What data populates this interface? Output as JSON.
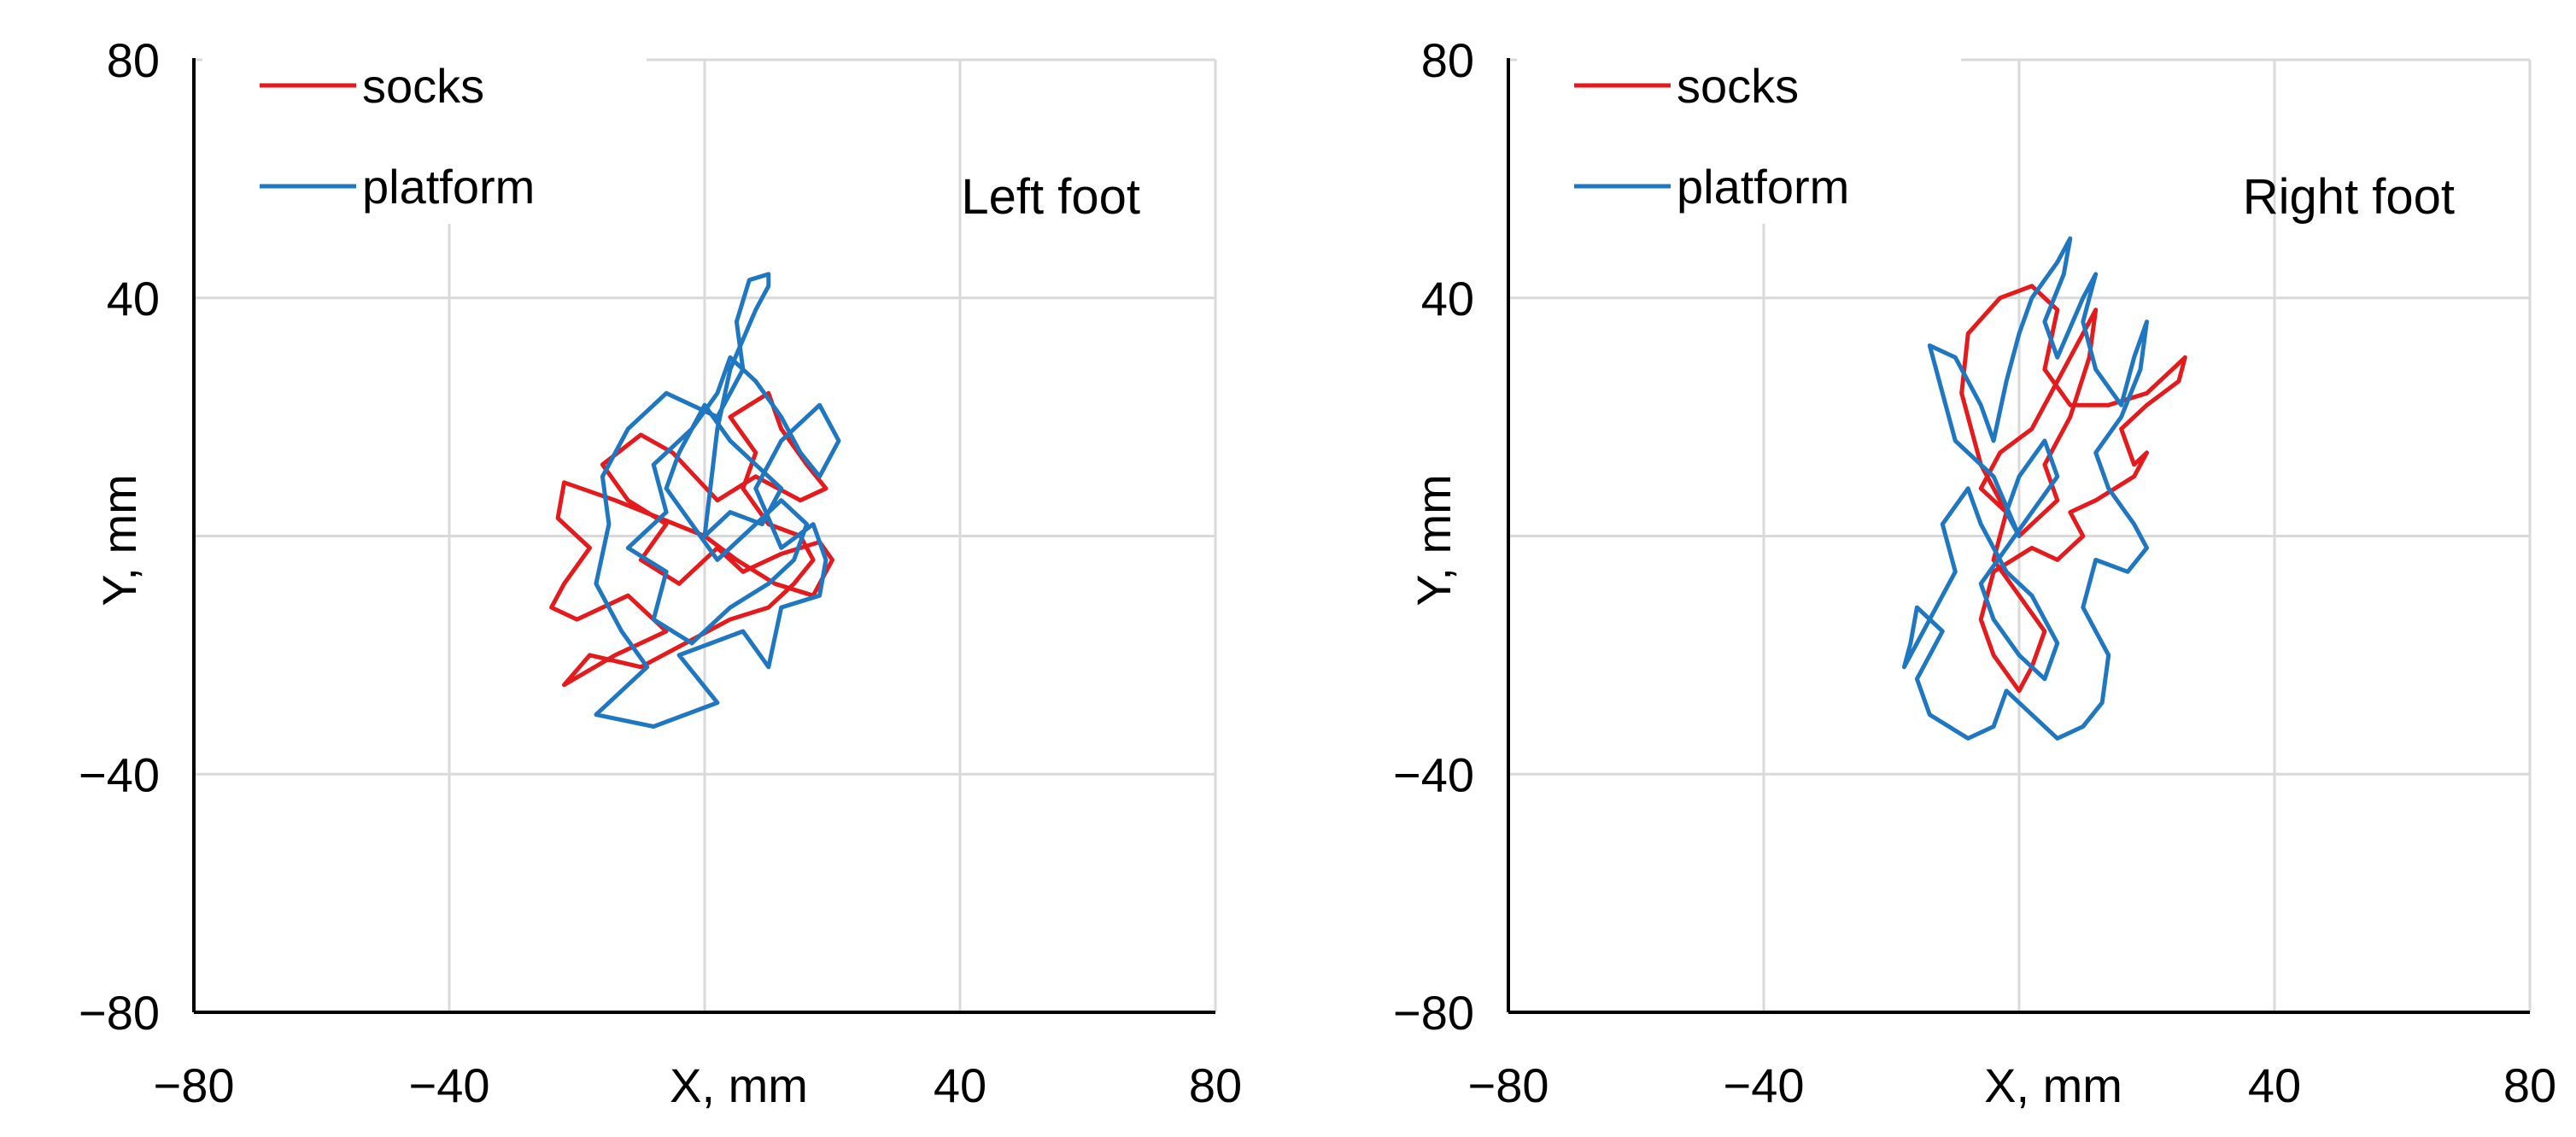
{
  "chart_data": [
    {
      "type": "line",
      "annotation": "Left foot",
      "xlabel": "X, mm",
      "ylabel": "Y, mm",
      "xlim": [
        -80,
        80
      ],
      "ylim": [
        -80,
        80
      ],
      "x_ticks": [
        "−80",
        "−40",
        "X, mm",
        "40",
        "80"
      ],
      "y_ticks": [
        "80",
        "40",
        "",
        "−40",
        "−80"
      ],
      "grid": true,
      "legend_position": "top-left",
      "series": [
        {
          "name": "socks",
          "color": "#e41a1c",
          "points": [
            [
              0,
              0
            ],
            [
              -14,
              6
            ],
            [
              -22,
              9
            ],
            [
              -23,
              3
            ],
            [
              -18,
              -2
            ],
            [
              -22,
              -8
            ],
            [
              -24,
              -12
            ],
            [
              -20,
              -14
            ],
            [
              -12,
              -10
            ],
            [
              -6,
              -16
            ],
            [
              -14,
              -20
            ],
            [
              -22,
              -25
            ],
            [
              -18,
              -20
            ],
            [
              -10,
              -22
            ],
            [
              -3,
              -18
            ],
            [
              4,
              -14
            ],
            [
              10,
              -12
            ],
            [
              14,
              -8
            ],
            [
              17,
              -4
            ],
            [
              15,
              0
            ],
            [
              10,
              2
            ],
            [
              6,
              8
            ],
            [
              8,
              14
            ],
            [
              4,
              20
            ],
            [
              10,
              24
            ],
            [
              12,
              18
            ],
            [
              16,
              12
            ],
            [
              19,
              8
            ],
            [
              15,
              6
            ],
            [
              8,
              10
            ],
            [
              2,
              6
            ],
            [
              -5,
              14
            ],
            [
              -10,
              17
            ],
            [
              -16,
              12
            ],
            [
              -12,
              6
            ],
            [
              -6,
              2
            ],
            [
              -10,
              -4
            ],
            [
              -4,
              -8
            ],
            [
              2,
              -2
            ],
            [
              6,
              -6
            ],
            [
              12,
              -3
            ],
            [
              18,
              -1
            ],
            [
              20,
              -4
            ],
            [
              17,
              -10
            ],
            [
              11,
              -8
            ],
            [
              5,
              -4
            ],
            [
              0,
              0
            ]
          ]
        },
        {
          "name": "platform",
          "color": "#1f77c2",
          "points": [
            [
              0,
              0
            ],
            [
              2,
              18
            ],
            [
              4,
              28
            ],
            [
              8,
              38
            ],
            [
              10,
              42
            ],
            [
              10,
              44
            ],
            [
              7,
              43
            ],
            [
              5,
              36
            ],
            [
              6,
              28
            ],
            [
              2,
              20
            ],
            [
              -6,
              24
            ],
            [
              -12,
              18
            ],
            [
              -16,
              10
            ],
            [
              -15,
              2
            ],
            [
              -17,
              -8
            ],
            [
              -13,
              -16
            ],
            [
              -9,
              -22
            ],
            [
              -15,
              -28
            ],
            [
              -17,
              -30
            ],
            [
              -8,
              -32
            ],
            [
              2,
              -28
            ],
            [
              -4,
              -20
            ],
            [
              6,
              -16
            ],
            [
              10,
              -22
            ],
            [
              12,
              -12
            ],
            [
              18,
              -10
            ],
            [
              19,
              -4
            ],
            [
              17,
              2
            ],
            [
              12,
              -2
            ],
            [
              8,
              8
            ],
            [
              12,
              16
            ],
            [
              18,
              22
            ],
            [
              21,
              16
            ],
            [
              18,
              10
            ],
            [
              15,
              14
            ],
            [
              12,
              20
            ],
            [
              8,
              26
            ],
            [
              4,
              30
            ],
            [
              2,
              24
            ],
            [
              -2,
              18
            ],
            [
              -8,
              12
            ],
            [
              -6,
              4
            ],
            [
              -12,
              -2
            ],
            [
              -6,
              -6
            ],
            [
              -8,
              -14
            ],
            [
              -2,
              -18
            ],
            [
              4,
              -12
            ],
            [
              10,
              -8
            ],
            [
              14,
              -4
            ],
            [
              16,
              2
            ],
            [
              12,
              6
            ],
            [
              6,
              0
            ],
            [
              2,
              -4
            ],
            [
              -2,
              2
            ],
            [
              -6,
              8
            ],
            [
              -4,
              14
            ],
            [
              0,
              22
            ],
            [
              4,
              16
            ],
            [
              8,
              12
            ],
            [
              12,
              8
            ],
            [
              9,
              2
            ],
            [
              4,
              4
            ],
            [
              0,
              0
            ]
          ]
        }
      ]
    },
    {
      "type": "line",
      "annotation": "Right foot",
      "xlabel": "X, mm",
      "ylabel": "Y, mm",
      "xlim": [
        -80,
        80
      ],
      "ylim": [
        -80,
        80
      ],
      "x_ticks": [
        "−80",
        "−40",
        "X, mm",
        "40",
        "80"
      ],
      "y_ticks": [
        "80",
        "40",
        "",
        "−40",
        "−80"
      ],
      "grid": true,
      "legend_position": "top-left",
      "series": [
        {
          "name": "socks",
          "color": "#e41a1c",
          "points": [
            [
              0,
              0
            ],
            [
              -6,
              12
            ],
            [
              -9,
              24
            ],
            [
              -8,
              34
            ],
            [
              -3,
              40
            ],
            [
              2,
              42
            ],
            [
              6,
              38
            ],
            [
              4,
              28
            ],
            [
              8,
              22
            ],
            [
              14,
              22
            ],
            [
              20,
              24
            ],
            [
              24,
              28
            ],
            [
              26,
              30
            ],
            [
              25,
              26
            ],
            [
              20,
              22
            ],
            [
              16,
              18
            ],
            [
              18,
              12
            ],
            [
              20,
              14
            ],
            [
              18,
              10
            ],
            [
              12,
              6
            ],
            [
              8,
              4
            ],
            [
              10,
              0
            ],
            [
              6,
              -4
            ],
            [
              2,
              -2
            ],
            [
              -4,
              -6
            ],
            [
              -6,
              -14
            ],
            [
              -4,
              -20
            ],
            [
              0,
              -26
            ],
            [
              2,
              -22
            ],
            [
              4,
              -16
            ],
            [
              0,
              -10
            ],
            [
              -4,
              -4
            ],
            [
              -2,
              4
            ],
            [
              -6,
              8
            ],
            [
              -3,
              14
            ],
            [
              2,
              18
            ],
            [
              6,
              26
            ],
            [
              10,
              34
            ],
            [
              12,
              38
            ],
            [
              11,
              30
            ],
            [
              8,
              20
            ],
            [
              4,
              12
            ],
            [
              6,
              6
            ],
            [
              2,
              2
            ],
            [
              0,
              0
            ]
          ]
        },
        {
          "name": "platform",
          "color": "#1f77c2",
          "points": [
            [
              0,
              0
            ],
            [
              -4,
              10
            ],
            [
              -10,
              16
            ],
            [
              -12,
              24
            ],
            [
              -14,
              32
            ],
            [
              -10,
              30
            ],
            [
              -6,
              22
            ],
            [
              -4,
              16
            ],
            [
              -2,
              26
            ],
            [
              0,
              34
            ],
            [
              2,
              40
            ],
            [
              6,
              46
            ],
            [
              8,
              50
            ],
            [
              7,
              44
            ],
            [
              4,
              36
            ],
            [
              6,
              30
            ],
            [
              10,
              40
            ],
            [
              12,
              44
            ],
            [
              10,
              36
            ],
            [
              12,
              28
            ],
            [
              16,
              22
            ],
            [
              18,
              30
            ],
            [
              20,
              36
            ],
            [
              19,
              28
            ],
            [
              16,
              20
            ],
            [
              12,
              14
            ],
            [
              14,
              8
            ],
            [
              18,
              2
            ],
            [
              20,
              -2
            ],
            [
              17,
              -6
            ],
            [
              12,
              -4
            ],
            [
              10,
              -12
            ],
            [
              14,
              -20
            ],
            [
              13,
              -28
            ],
            [
              10,
              -32
            ],
            [
              6,
              -34
            ],
            [
              2,
              -30
            ],
            [
              -2,
              -26
            ],
            [
              -4,
              -32
            ],
            [
              -8,
              -34
            ],
            [
              -14,
              -30
            ],
            [
              -16,
              -24
            ],
            [
              -12,
              -16
            ],
            [
              -16,
              -12
            ],
            [
              -17,
              -18
            ],
            [
              -18,
              -22
            ],
            [
              -14,
              -14
            ],
            [
              -10,
              -6
            ],
            [
              -12,
              2
            ],
            [
              -8,
              8
            ],
            [
              -6,
              2
            ],
            [
              -2,
              -6
            ],
            [
              2,
              -10
            ],
            [
              6,
              -18
            ],
            [
              4,
              -24
            ],
            [
              0,
              -20
            ],
            [
              -4,
              -14
            ],
            [
              -6,
              -8
            ],
            [
              -2,
              -2
            ],
            [
              2,
              4
            ],
            [
              6,
              10
            ],
            [
              4,
              16
            ],
            [
              0,
              10
            ],
            [
              -2,
              4
            ],
            [
              0,
              0
            ]
          ]
        }
      ]
    }
  ]
}
